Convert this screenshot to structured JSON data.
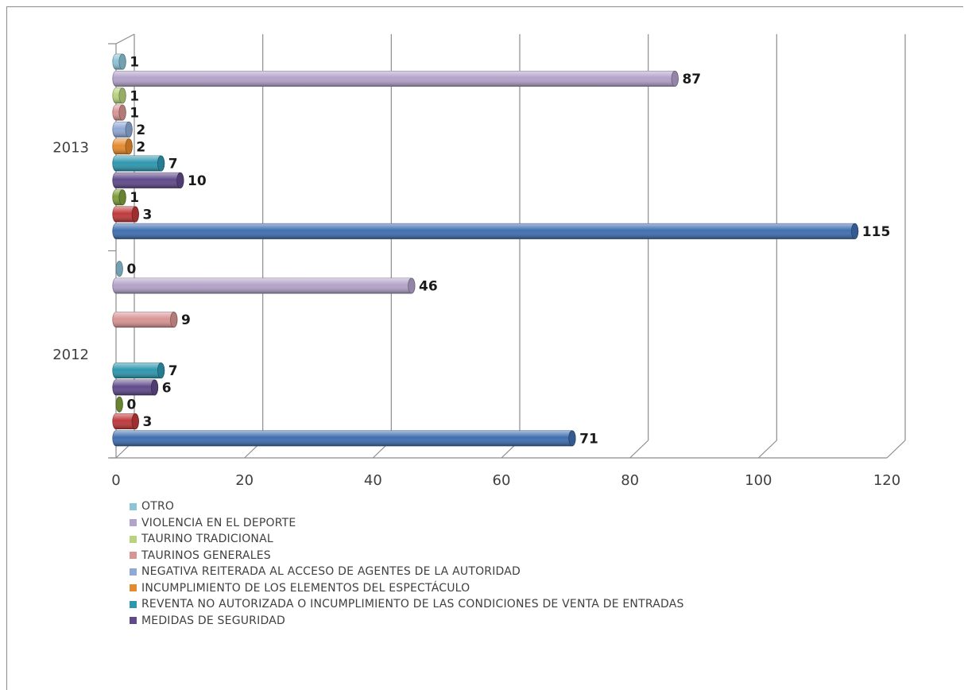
{
  "chart_data": {
    "type": "bar",
    "orientation": "horizontal",
    "title": "",
    "xlabel": "",
    "ylabel": "",
    "xlim": [
      0,
      120
    ],
    "x_ticks": [
      "0",
      "20",
      "40",
      "60",
      "80",
      "100",
      "120"
    ],
    "grid": true,
    "legend_position": "bottom",
    "categories": [
      "2012",
      "2013"
    ],
    "series": [
      {
        "name": "",
        "color": "#3F6FB0",
        "values": [
          71,
          115
        ]
      },
      {
        "name": "",
        "color": "#C0393B",
        "values": [
          3,
          3
        ]
      },
      {
        "name": "",
        "color": "#7E9E3B",
        "values": [
          0,
          1
        ]
      },
      {
        "name": "MEDIDAS DE SEGURIDAD",
        "color": "#604A8B",
        "values": [
          6,
          10
        ]
      },
      {
        "name": "REVENTA NO AUTORIZADA O INCUMPLIMIENTO DE LAS CONDICIONES DE VENTA DE ENTRADAS",
        "color": "#2E97B0",
        "values": [
          7,
          7
        ]
      },
      {
        "name": "INCUMPLIMIENTO DE LOS ELEMENTOS DEL ESPECTÁCULO",
        "color": "#E58A2E",
        "values": [
          null,
          2
        ]
      },
      {
        "name": "NEGATIVA REITERADA AL ACCESO DE AGENTES DE LA AUTORIDAD",
        "color": "#8FA8D6",
        "values": [
          null,
          2
        ]
      },
      {
        "name": "TAURINOS GENERALES",
        "color": "#D99594",
        "values": [
          9,
          1
        ]
      },
      {
        "name": "TAURINO TRADICIONAL",
        "color": "#B8D27E",
        "values": [
          null,
          1
        ]
      },
      {
        "name": "VIOLENCIA EN EL DEPORTE",
        "color": "#B3A2C9",
        "values": [
          46,
          87
        ]
      },
      {
        "name": "OTRO",
        "color": "#8CC4D8",
        "values": [
          0,
          1
        ]
      }
    ]
  },
  "legend": {
    "items": [
      {
        "label": "OTRO",
        "color": "#8CC4D8"
      },
      {
        "label": "VIOLENCIA EN EL DEPORTE",
        "color": "#B3A2C9"
      },
      {
        "label": "TAURINO TRADICIONAL",
        "color": "#B8D27E"
      },
      {
        "label": "TAURINOS GENERALES",
        "color": "#D99594"
      },
      {
        "label": "NEGATIVA REITERADA AL ACCESO DE AGENTES DE LA AUTORIDAD",
        "color": "#8FA8D6"
      },
      {
        "label": "INCUMPLIMIENTO DE LOS ELEMENTOS DEL ESPECTÁCULO",
        "color": "#E58A2E"
      },
      {
        "label": "REVENTA NO AUTORIZADA O INCUMPLIMIENTO DE LAS CONDICIONES DE VENTA DE ENTRADAS",
        "color": "#2E97B0"
      },
      {
        "label": "MEDIDAS DE SEGURIDAD",
        "color": "#604A8B"
      }
    ]
  }
}
